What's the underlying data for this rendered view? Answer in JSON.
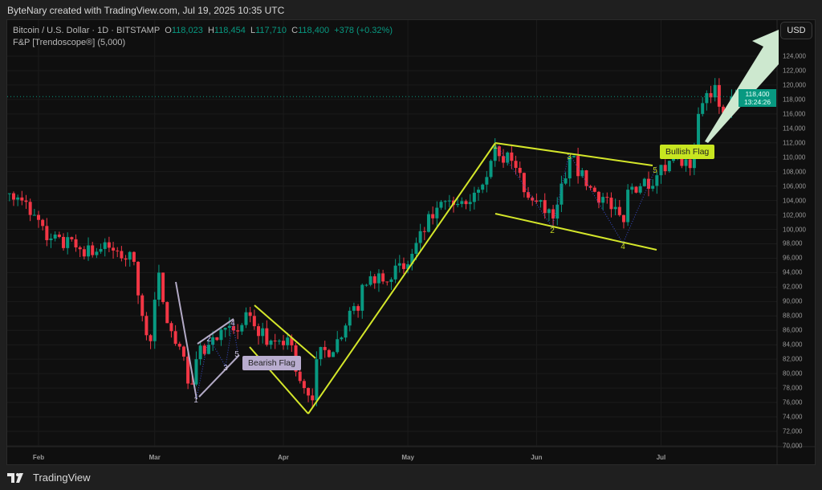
{
  "credit": "ByteNary created with TradingView.com, Jul 19, 2025 10:35 UTC",
  "legend": {
    "symbol": "Bitcoin / U.S. Dollar · 1D · BITSTAMP",
    "o_label": "O",
    "o": "118,023",
    "h_label": "H",
    "h": "118,454",
    "l_label": "L",
    "l": "117,710",
    "c_label": "C",
    "c": "118,400",
    "change": "+378 (+0.32%)",
    "indicator": "F&P [Trendoscope®] (5,000)"
  },
  "currency_button": "USD",
  "last_price": {
    "price": "118,400",
    "countdown": "13:24:26"
  },
  "annotations": {
    "bearish": "Bearish Flag",
    "bullish": "Bullish Flag",
    "bear_points": [
      "1",
      "2",
      "3",
      "4",
      "5"
    ],
    "bull_points": [
      "1",
      "2",
      "3",
      "4",
      "5"
    ]
  },
  "footer": {
    "brand": "TradingView"
  },
  "colors": {
    "up": "#089981",
    "down": "#f23645",
    "pattern": "#d4e62a",
    "bear_pattern": "#b3aac6",
    "arrow": "#cde8cf"
  },
  "chart_data": {
    "type": "candlestick",
    "x_ticks": [
      "Feb",
      "Mar",
      "Apr",
      "May",
      "Jun",
      "Jul"
    ],
    "y_ticks": [
      "70,000",
      "72,000",
      "74,000",
      "76,000",
      "78,000",
      "80,000",
      "82,000",
      "84,000",
      "86,000",
      "88,000",
      "90,000",
      "92,000",
      "94,000",
      "96,000",
      "98,000",
      "100,000",
      "102,000",
      "104,000",
      "106,000",
      "108,000",
      "110,000",
      "112,000",
      "114,000",
      "116,000",
      "118,000",
      "120,000",
      "122,000",
      "124,000"
    ],
    "ylim": [
      70000,
      126000
    ],
    "approx_closes": [
      [
        "2025-01-25",
        105000
      ],
      [
        "2025-01-28",
        104000
      ],
      [
        "2025-01-31",
        102000
      ],
      [
        "2025-02-03",
        98500
      ],
      [
        "2025-02-10",
        97500
      ],
      [
        "2025-02-20",
        97000
      ],
      [
        "2025-02-24",
        95500
      ],
      [
        "2025-02-26",
        88000
      ],
      [
        "2025-02-28",
        84500
      ],
      [
        "2025-03-02",
        94000
      ],
      [
        "2025-03-04",
        87000
      ],
      [
        "2025-03-10",
        78500
      ],
      [
        "2025-03-11",
        82000
      ],
      [
        "2025-03-14",
        84000
      ],
      [
        "2025-03-20",
        86000
      ],
      [
        "2025-03-24",
        88000
      ],
      [
        "2025-03-28",
        84000
      ],
      [
        "2025-04-02",
        85000
      ],
      [
        "2025-04-06",
        78000
      ],
      [
        "2025-04-08",
        76300
      ],
      [
        "2025-04-09",
        82000
      ],
      [
        "2025-04-15",
        85000
      ],
      [
        "2025-04-22",
        93500
      ],
      [
        "2025-04-30",
        94500
      ],
      [
        "2025-05-08",
        103000
      ],
      [
        "2025-05-15",
        103500
      ],
      [
        "2025-05-21",
        109500
      ],
      [
        "2025-05-22",
        111500
      ],
      [
        "2025-05-26",
        109500
      ],
      [
        "2025-05-31",
        104000
      ],
      [
        "2025-06-05",
        101500
      ],
      [
        "2025-06-09",
        110000
      ],
      [
        "2025-06-13",
        106000
      ],
      [
        "2025-06-17",
        104500
      ],
      [
        "2025-06-22",
        101000
      ],
      [
        "2025-06-23",
        105500
      ],
      [
        "2025-06-30",
        107500
      ],
      [
        "2025-07-03",
        109500
      ],
      [
        "2025-07-08",
        108500
      ],
      [
        "2025-07-09",
        111000
      ],
      [
        "2025-07-10",
        116000
      ],
      [
        "2025-07-11",
        117500
      ],
      [
        "2025-07-14",
        120000
      ],
      [
        "2025-07-15",
        117000
      ],
      [
        "2025-07-19",
        118400
      ]
    ]
  }
}
